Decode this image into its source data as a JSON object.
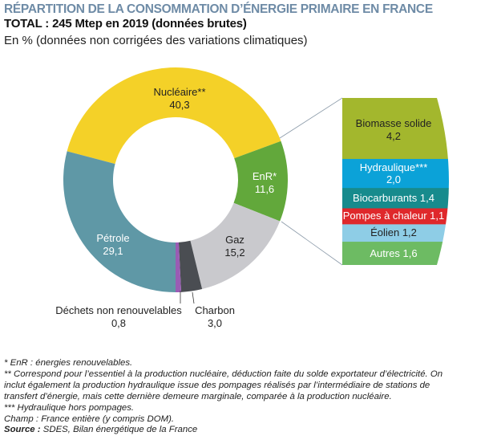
{
  "header": {
    "title": "RÉPARTITION DE LA CONSOMMATION D’ÉNERGIE PRIMAIRE EN FRANCE",
    "subtitle": "TOTAL : 245 Mtep en 2019 (données brutes)",
    "unit": "En % (données non corrigées des variations climatiques)"
  },
  "chart_data": [
    {
      "type": "pie",
      "variant": "donut",
      "unit": "%",
      "slices": [
        {
          "label": "Nucléaire**",
          "value": 40.3,
          "value_text": "40,3",
          "color": "#f4d128"
        },
        {
          "label": "EnR*",
          "value": 11.6,
          "value_text": "11,6",
          "color": "#62a83b"
        },
        {
          "label": "Gaz",
          "value": 15.2,
          "value_text": "15,2",
          "color": "#c9c9cd"
        },
        {
          "label": "Charbon",
          "value": 3.0,
          "value_text": "3,0",
          "color": "#4a4d52"
        },
        {
          "label": "Déchets non renouvelables",
          "value": 0.8,
          "value_text": "0,8",
          "color": "#9a5cb4"
        },
        {
          "label": "Pétrole",
          "value": 29.1,
          "value_text": "29,1",
          "color": "#5f98a6"
        }
      ]
    },
    {
      "type": "bar",
      "variant": "stacked breakdown of EnR*",
      "unit": "%",
      "segments": [
        {
          "label": "Biomasse solide",
          "value": 4.2,
          "value_text": "4,2",
          "color": "#a3b72d"
        },
        {
          "label": "Hydraulique***",
          "value": 2.0,
          "value_text": "2,0",
          "color": "#0ba2d8"
        },
        {
          "label": "Biocarburants",
          "value": 1.4,
          "value_text": "1,4",
          "color": "#178b8d"
        },
        {
          "label": "Pompes à chaleur",
          "value": 1.1,
          "value_text": "1,1",
          "color": "#df282b"
        },
        {
          "label": "Éolien",
          "value": 1.2,
          "value_text": "1,2",
          "color": "#8ecde6"
        },
        {
          "label": "Autres",
          "value": 1.6,
          "value_text": "1,6",
          "color": "#6dbb63"
        }
      ]
    }
  ],
  "labels": {
    "nucleaire": {
      "name": "Nucléaire**",
      "value": "40,3"
    },
    "enr": {
      "name": "EnR*",
      "value": "11,6"
    },
    "gaz": {
      "name": "Gaz",
      "value": "15,2"
    },
    "petrole": {
      "name": "Pétrole",
      "value": "29,1"
    },
    "dechets": {
      "name": "Déchets non renouvelables",
      "value": "0,8"
    },
    "charbon": {
      "name": "Charbon",
      "value": "3,0"
    },
    "biomasse": {
      "name": "Biomasse solide",
      "value": "4,2"
    },
    "hydraulique": {
      "name": "Hydraulique***",
      "value": "2,0"
    },
    "biocarburants": "Biocarburants 1,4",
    "pompes": "Pompes à chaleur 1,1",
    "eolien": "Éolien 1,2",
    "autres": "Autres 1,6"
  },
  "notes": {
    "n1": "* EnR : énergies renouvelables.",
    "n2a": "** Correspond pour l’essentiel à la production nucléaire, déduction faite du solde exportateur d’électricité. On",
    "n2b": "inclut également la production hydraulique issue des pompages réalisés par l’intermédiaire de stations de",
    "n2c": "transfert d’énergie, mais cette dernière demeure marginale, comparée à la production nucléaire.",
    "n3": "*** Hydraulique hors pompages.",
    "champ": "Champ : France entière (y compris DOM).",
    "source_label": "Source :",
    "source": " SDES, Bilan énergétique de la France"
  }
}
